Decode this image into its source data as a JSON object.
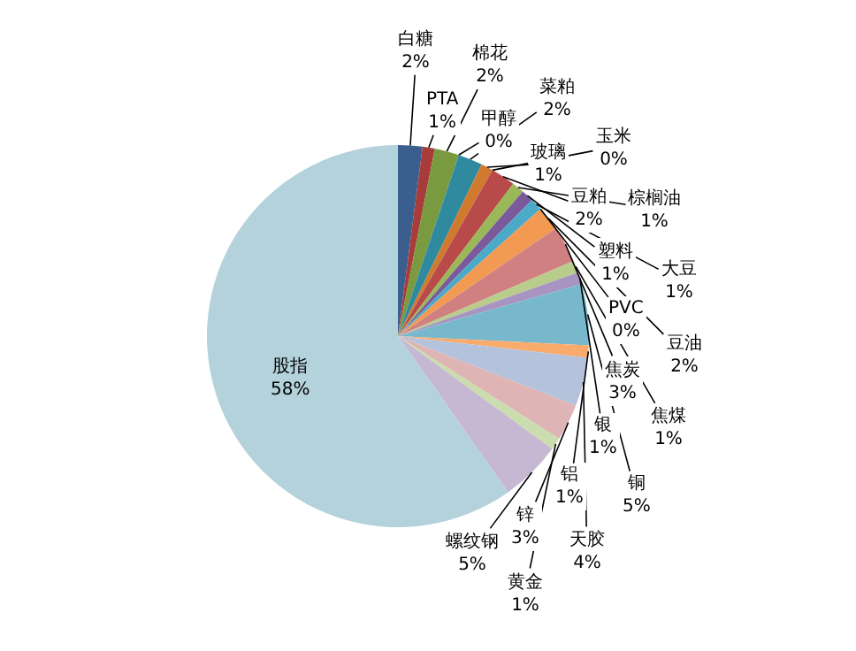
{
  "chart_data": {
    "type": "pie",
    "categories": [
      "白糖",
      "PTA",
      "棉花",
      "甲醇",
      "菜粕",
      "玻璃",
      "玉米",
      "豆粕",
      "棕榈油",
      "塑料",
      "大豆",
      "PVC",
      "豆油",
      "焦炭",
      "焦煤",
      "银",
      "铜",
      "铝",
      "天胶",
      "锌",
      "黄金",
      "螺纹钢",
      "股指"
    ],
    "values": [
      2,
      1,
      2,
      0,
      2,
      1,
      0,
      2,
      1,
      1,
      1,
      0,
      2,
      3,
      1,
      1,
      5,
      1,
      4,
      3,
      1,
      5,
      58
    ],
    "value_labels": [
      "2%",
      "1%",
      "2%",
      "0%",
      "2%",
      "1%",
      "0%",
      "2%",
      "1%",
      "1%",
      "1%",
      "0%",
      "2%",
      "3%",
      "1%",
      "1%",
      "5%",
      "1%",
      "4%",
      "3%",
      "1%",
      "5%",
      "58%"
    ],
    "colors": [
      "#3a5f8f",
      "#a83c3a",
      "#7a9a40",
      "#6a4a8a",
      "#2f8aa0",
      "#d07a30",
      "#c0504d",
      "#b84a4a",
      "#9ab858",
      "#7a5a9a",
      "#4aaac8",
      "#f09040",
      "#f39a52",
      "#d08080",
      "#b8cc8c",
      "#a894c0",
      "#78b8cc",
      "#f9ab6b",
      "#b4c2dc",
      "#deb4b4",
      "#cbdcae",
      "#c6b8d2",
      "#b4d2dc"
    ],
    "legend": false
  }
}
